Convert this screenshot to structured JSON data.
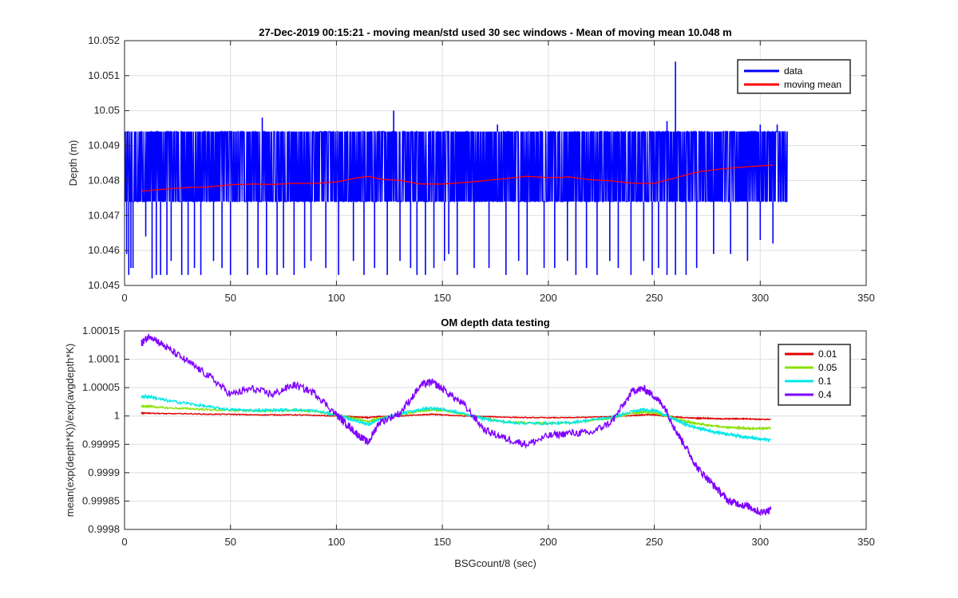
{
  "chart_data": [
    {
      "type": "line",
      "title": "27-Dec-2019 00:15:21 - moving mean/std used 30 sec windows - Mean of moving mean 10.048 m",
      "xlabel": "",
      "ylabel": "Depth (m)",
      "xlim": [
        0,
        350
      ],
      "ylim": [
        10.045,
        10.052
      ],
      "xticks": [
        0,
        50,
        100,
        150,
        200,
        250,
        300,
        350
      ],
      "yticks": [
        10.045,
        10.046,
        10.047,
        10.048,
        10.049,
        10.05,
        10.051,
        10.052
      ],
      "xtick_labels": [
        "0",
        "50",
        "100",
        "150",
        "200",
        "250",
        "300",
        "350"
      ],
      "ytick_labels": [
        "10.045",
        "10.046",
        "10.047",
        "10.048",
        "10.049",
        "10.05",
        "10.051",
        "10.052"
      ],
      "grid": true,
      "legend_position": "top-right",
      "series": [
        {
          "name": "data",
          "color": "#0000ff",
          "x_range": [
            0,
            313
          ],
          "band": [
            10.0474,
            10.0494
          ],
          "spikes_down": [
            [
              1,
              10.0459
            ],
            [
              2,
              10.0453
            ],
            [
              3,
              10.0455
            ],
            [
              4,
              10.0455
            ],
            [
              10,
              10.0464
            ],
            [
              13,
              10.0452
            ],
            [
              15,
              10.0453
            ],
            [
              17,
              10.0453
            ],
            [
              20,
              10.0453
            ],
            [
              22,
              10.0457
            ],
            [
              27,
              10.0453
            ],
            [
              30,
              10.0453
            ],
            [
              33,
              10.0455
            ],
            [
              36,
              10.0453
            ],
            [
              42,
              10.0457
            ],
            [
              46,
              10.0455
            ],
            [
              50,
              10.0453
            ],
            [
              58,
              10.0453
            ],
            [
              63,
              10.0455
            ],
            [
              67,
              10.0453
            ],
            [
              72,
              10.0453
            ],
            [
              75,
              10.0455
            ],
            [
              80,
              10.0453
            ],
            [
              85,
              10.0455
            ],
            [
              88,
              10.0457
            ],
            [
              95,
              10.0455
            ],
            [
              101,
              10.0453
            ],
            [
              108,
              10.0457
            ],
            [
              113,
              10.0453
            ],
            [
              118,
              10.0455
            ],
            [
              124,
              10.0453
            ],
            [
              130,
              10.0457
            ],
            [
              135,
              10.0455
            ],
            [
              138,
              10.0453
            ],
            [
              142,
              10.0453
            ],
            [
              146,
              10.0455
            ],
            [
              151,
              10.0457
            ],
            [
              153,
              10.0459
            ],
            [
              157,
              10.0453
            ],
            [
              165,
              10.0455
            ],
            [
              172,
              10.0455
            ],
            [
              180,
              10.0453
            ],
            [
              186,
              10.0457
            ],
            [
              190,
              10.0453
            ],
            [
              198,
              10.0455
            ],
            [
              203,
              10.0455
            ],
            [
              209,
              10.0457
            ],
            [
              213,
              10.0453
            ],
            [
              218,
              10.0455
            ],
            [
              223,
              10.0453
            ],
            [
              229,
              10.0457
            ],
            [
              233,
              10.0455
            ],
            [
              239,
              10.0453
            ],
            [
              245,
              10.0457
            ],
            [
              249,
              10.0453
            ],
            [
              252,
              10.0455
            ],
            [
              256,
              10.0453
            ],
            [
              260,
              10.0453
            ],
            [
              265,
              10.0453
            ],
            [
              270,
              10.0455
            ],
            [
              278,
              10.0459
            ],
            [
              286,
              10.0459
            ],
            [
              294,
              10.0457
            ],
            [
              300,
              10.0463
            ],
            [
              306,
              10.0462
            ]
          ],
          "spikes_up": [
            [
              65,
              10.0498
            ],
            [
              127,
              10.05
            ],
            [
              176,
              10.0496
            ],
            [
              260,
              10.0514
            ],
            [
              256,
              10.0497
            ],
            [
              300,
              10.0496
            ],
            [
              308,
              10.0496
            ]
          ]
        },
        {
          "name": "moving mean",
          "color": "#ff0000",
          "x": [
            8,
            20,
            30,
            40,
            50,
            60,
            70,
            80,
            90,
            100,
            110,
            115,
            120,
            130,
            140,
            150,
            160,
            170,
            180,
            190,
            200,
            210,
            220,
            230,
            240,
            250,
            260,
            270,
            280,
            290,
            300,
            306
          ],
          "y": [
            10.0477,
            10.04776,
            10.0478,
            10.04782,
            10.04788,
            10.0479,
            10.04789,
            10.04792,
            10.04792,
            10.04796,
            10.04808,
            10.04812,
            10.04805,
            10.048,
            10.0479,
            10.0479,
            10.04794,
            10.048,
            10.04806,
            10.04812,
            10.04808,
            10.0481,
            10.04802,
            10.04799,
            10.04792,
            10.04792,
            10.04808,
            10.04824,
            10.04832,
            10.04838,
            10.04842,
            10.04844
          ]
        }
      ]
    },
    {
      "type": "line",
      "title": "OM depth data testing",
      "xlabel": "BSGcount/8 (sec)",
      "ylabel": "mean(exp(depth*K))/exp(avgdepth*K)",
      "xlim": [
        0,
        350
      ],
      "ylim": [
        0.9998,
        1.00015
      ],
      "xticks": [
        0,
        50,
        100,
        150,
        200,
        250,
        300,
        350
      ],
      "yticks": [
        0.9998,
        0.99985,
        0.9999,
        0.99995,
        1,
        1.00005,
        1.0001,
        1.00015
      ],
      "xtick_labels": [
        "0",
        "50",
        "100",
        "150",
        "200",
        "250",
        "300",
        "350"
      ],
      "ytick_labels": [
        "0.9998",
        "0.99985",
        "0.9999",
        "0.99995",
        "1",
        "1.00005",
        "1.0001",
        "1.00015"
      ],
      "grid": true,
      "legend_position": "top-right",
      "x": [
        8,
        12,
        20,
        30,
        40,
        50,
        60,
        70,
        80,
        90,
        100,
        105,
        110,
        115,
        120,
        130,
        140,
        145,
        150,
        160,
        170,
        180,
        190,
        200,
        210,
        220,
        230,
        240,
        245,
        250,
        255,
        260,
        265,
        270,
        275,
        280,
        285,
        290,
        295,
        300,
        305
      ],
      "series": [
        {
          "name": "0.01",
          "color": "#e00000",
          "y": [
            1.000005,
            1.000005,
            1.000004,
            1.000004,
            1.000003,
            1.000003,
            1.000002,
            1.000002,
            1.000002,
            1.000001,
            1.0,
            0.999999,
            0.999998,
            0.999997,
            0.999999,
            1.0,
            1.000002,
            1.000003,
            1.000002,
            1.0,
            0.999999,
            0.999998,
            0.999997,
            0.999997,
            0.999997,
            0.999998,
            0.999999,
            1.000001,
            1.000002,
            1.000002,
            1.0,
            0.999998,
            0.999997,
            0.999996,
            0.999996,
            0.999995,
            0.999995,
            0.999995,
            0.999995,
            0.999994,
            0.999994
          ]
        },
        {
          "name": "0.05",
          "color": "#88e000",
          "y": [
            1.000017,
            1.000017,
            1.000014,
            1.000013,
            1.000011,
            1.00001,
            1.000009,
            1.000009,
            1.00001,
            1.000008,
            1.000001,
            0.999998,
            0.999994,
            0.99999,
            0.999996,
            1.000002,
            1.000009,
            1.000011,
            1.00001,
            1.000003,
            0.999996,
            0.99999,
            0.999988,
            0.999987,
            0.999988,
            0.999992,
            0.999996,
            1.000005,
            1.000007,
            1.000006,
            1.000001,
            0.999995,
            0.99999,
            0.999987,
            0.999984,
            0.999982,
            0.99998,
            0.999979,
            0.999978,
            0.999978,
            0.999979
          ]
        },
        {
          "name": "0.1",
          "color": "#00e8e8",
          "y": [
            1.000034,
            1.000034,
            1.000027,
            1.000022,
            1.000016,
            1.000011,
            1.00001,
            1.00001,
            1.000011,
            1.000009,
            1.000002,
            0.999996,
            0.999991,
            0.999985,
            0.999993,
            1.000004,
            1.000012,
            1.000014,
            1.000012,
            1.000004,
            0.999995,
            0.999989,
            0.999987,
            0.999987,
            0.999988,
            0.999993,
            0.999998,
            1.000008,
            1.000011,
            1.00001,
            1.000002,
            0.999993,
            0.999985,
            0.999979,
            0.999975,
            0.999971,
            0.999968,
            0.999965,
            0.999962,
            0.999959,
            0.999958
          ]
        },
        {
          "name": "0.4",
          "color": "#7f00ff",
          "y": [
            1.000128,
            1.000142,
            1.00012,
            1.000095,
            1.00007,
            1.000038,
            1.000048,
            1.000038,
            1.000055,
            1.00004,
            1.000002,
            0.999985,
            0.999967,
            0.999953,
            0.999988,
            1.000005,
            1.000055,
            1.00006,
            1.000048,
            1.00002,
            0.999975,
            0.99996,
            0.99995,
            0.999965,
            0.99997,
            0.99997,
            0.99999,
            1.000045,
            1.000048,
            1.000035,
            1.000015,
            0.999975,
            0.999945,
            0.99991,
            0.99989,
            0.99987,
            0.99985,
            0.999845,
            0.99984,
            0.99983,
            0.999835
          ]
        }
      ]
    }
  ]
}
